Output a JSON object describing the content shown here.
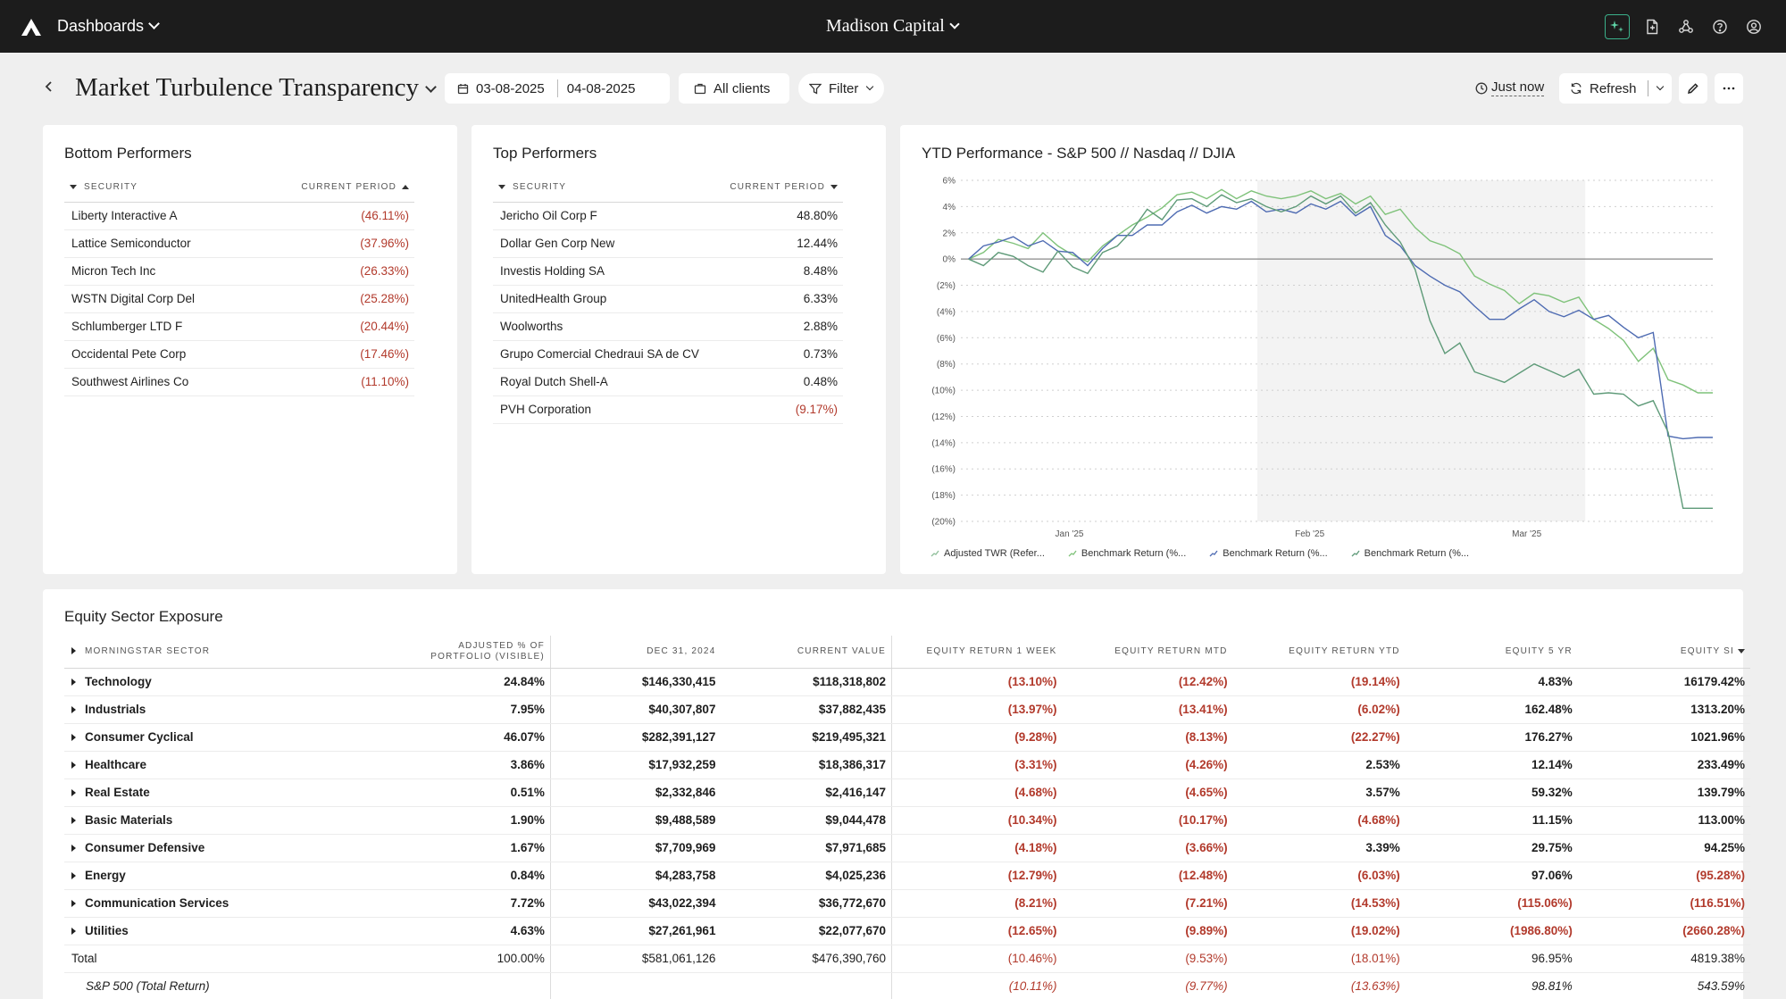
{
  "topbar": {
    "nav_label": "Dashboards",
    "org_name": "Madison Capital",
    "icons": [
      "logo-icon",
      "sparkle-icon",
      "document-icon",
      "network-icon",
      "help-icon",
      "user-icon"
    ]
  },
  "header": {
    "title": "Market Turbulence Transparency",
    "date_start": "03-08-2025",
    "date_end": "04-08-2025",
    "clients_label": "All clients",
    "filter_label": "Filter",
    "updated_label": "Just now",
    "refresh_label": "Refresh"
  },
  "bottom_performers": {
    "title": "Bottom Performers",
    "col_security": "Security",
    "col_period": "Current Period",
    "rows": [
      {
        "name": "Liberty Interactive A",
        "value": "(46.11%)"
      },
      {
        "name": "Lattice Semiconductor",
        "value": "(37.96%)"
      },
      {
        "name": "Micron Tech Inc",
        "value": "(26.33%)"
      },
      {
        "name": "WSTN Digital Corp Del",
        "value": "(25.28%)"
      },
      {
        "name": "Schlumberger LTD F",
        "value": "(20.44%)"
      },
      {
        "name": "Occidental Pete Corp",
        "value": "(17.46%)"
      },
      {
        "name": "Southwest Airlines Co",
        "value": "(11.10%)"
      }
    ]
  },
  "top_performers": {
    "title": "Top Performers",
    "col_security": "Security",
    "col_period": "Current Period",
    "rows": [
      {
        "name": "Jericho Oil Corp F",
        "value": "48.80%"
      },
      {
        "name": "Dollar Gen Corp New",
        "value": "12.44%"
      },
      {
        "name": "Investis Holding SA",
        "value": "8.48%"
      },
      {
        "name": "UnitedHealth Group",
        "value": "6.33%"
      },
      {
        "name": "Woolworths",
        "value": "2.88%"
      },
      {
        "name": "Grupo Comercial Chedraui SA de CV",
        "value": "0.73%"
      },
      {
        "name": "Royal Dutch Shell-A",
        "value": "0.48%"
      },
      {
        "name": "PVH Corporation",
        "value": "(9.17%)"
      }
    ]
  },
  "chart_data": {
    "type": "line",
    "title": "YTD Performance - S&P 500 // Nasdaq // DJIA",
    "ylim": [
      -20,
      6
    ],
    "yticks": [
      "6%",
      "4%",
      "2%",
      "0%",
      "(2%)",
      "(4%)",
      "(6%)",
      "(8%)",
      "(10%)",
      "(12%)",
      "(14%)",
      "(16%)",
      "(18%)",
      "(20%)"
    ],
    "xticks": [
      "Jan '25",
      "Feb '25",
      "Mar '25"
    ],
    "x_range": [
      "2025-01-01",
      "2025-04-08"
    ],
    "x_tick_dates": [
      "2025-01-15",
      "2025-02-15",
      "2025-03-15"
    ],
    "grid": true,
    "legend_position": "bottom",
    "series": [
      {
        "name": "Adjusted TWR (Refer...",
        "color": "#8fbf9a",
        "values": []
      },
      {
        "name": "Benchmark Return (%...",
        "color": "#7fc27a",
        "values": [
          0,
          0.5,
          1.5,
          1.2,
          0.8,
          2.0,
          1.0,
          0.3,
          -0.2,
          1.0,
          1.8,
          2.6,
          3.2,
          3.9,
          4.9,
          5.1,
          4.6,
          5.3,
          4.6,
          5.2,
          4.8,
          4.6,
          4.8,
          5.2,
          4.6,
          5.0,
          4.2,
          4.8,
          3.4,
          3.8,
          2.4,
          1.4,
          1.0,
          0.4,
          -1.3,
          -1.9,
          -2.4,
          -3.4,
          -2.6,
          -2.8,
          -3.3,
          -2.9,
          -4.6,
          -5.3,
          -6.2,
          -7.8,
          -6.8,
          -9.2,
          -9.6,
          -10.2,
          -10.2
        ]
      },
      {
        "name": "Benchmark Return (%...",
        "color": "#4e6bb2",
        "values": [
          0,
          1.0,
          1.3,
          1.7,
          1.0,
          1.4,
          0.6,
          0.5,
          -0.5,
          0.8,
          1.8,
          1.8,
          2.6,
          2.6,
          3.6,
          4.1,
          3.5,
          4.0,
          3.8,
          4.4,
          3.6,
          3.8,
          3.5,
          4.2,
          3.8,
          4.4,
          3.3,
          4.0,
          1.8,
          1.0,
          -0.5,
          -1.3,
          -2.0,
          -2.5,
          -3.6,
          -4.6,
          -4.6,
          -3.8,
          -3.1,
          -4.0,
          -4.4,
          -3.9,
          -4.6,
          -4.3,
          -5.2,
          -6.0,
          -5.6,
          -13.5,
          -13.7,
          -13.6,
          -13.6
        ]
      },
      {
        "name": "Benchmark Return (%...",
        "color": "#5e9a78",
        "values": [
          0,
          -0.5,
          0.5,
          0.2,
          -0.5,
          -1.0,
          0.6,
          -0.6,
          -1.1,
          0.5,
          1.0,
          2.2,
          3.8,
          3.0,
          4.5,
          4.6,
          4.0,
          4.9,
          4.3,
          4.6,
          4.0,
          3.6,
          4.0,
          4.8,
          4.2,
          4.8,
          3.5,
          4.3,
          2.6,
          1.3,
          -0.8,
          -4.7,
          -7.2,
          -6.4,
          -8.6,
          -9.0,
          -9.4,
          -8.7,
          -8.0,
          -8.5,
          -9.0,
          -8.4,
          -10.3,
          -10.2,
          -10.3,
          -11.2,
          -10.8,
          -13.2,
          -19.0,
          -19.0,
          -19.0
        ]
      }
    ],
    "series_dates": [
      "2025-01-02",
      "2025-04-08"
    ]
  },
  "equity": {
    "title": "Equity Sector Exposure",
    "columns": [
      "Morningstar Sector",
      "Adjusted % of Portfolio (Visible)",
      "Dec 31, 2024",
      "Current Value",
      "Equity Return 1 Week",
      "Equity Return MTD",
      "Equity Return YTD",
      "Equity 5 YR",
      "Equity SI"
    ],
    "rows": [
      {
        "cells": [
          "Technology",
          "24.84%",
          "$146,330,415",
          "$118,318,802",
          "(13.10%)",
          "(12.42%)",
          "(19.14%)",
          "4.83%",
          "16179.42%"
        ]
      },
      {
        "cells": [
          "Industrials",
          "7.95%",
          "$40,307,807",
          "$37,882,435",
          "(13.97%)",
          "(13.41%)",
          "(6.02%)",
          "162.48%",
          "1313.20%"
        ]
      },
      {
        "cells": [
          "Consumer Cyclical",
          "46.07%",
          "$282,391,127",
          "$219,495,321",
          "(9.28%)",
          "(8.13%)",
          "(22.27%)",
          "176.27%",
          "1021.96%"
        ]
      },
      {
        "cells": [
          "Healthcare",
          "3.86%",
          "$17,932,259",
          "$18,386,317",
          "(3.31%)",
          "(4.26%)",
          "2.53%",
          "12.14%",
          "233.49%"
        ]
      },
      {
        "cells": [
          "Real Estate",
          "0.51%",
          "$2,332,846",
          "$2,416,147",
          "(4.68%)",
          "(4.65%)",
          "3.57%",
          "59.32%",
          "139.79%"
        ]
      },
      {
        "cells": [
          "Basic Materials",
          "1.90%",
          "$9,488,589",
          "$9,044,478",
          "(10.34%)",
          "(10.17%)",
          "(4.68%)",
          "11.15%",
          "113.00%"
        ]
      },
      {
        "cells": [
          "Consumer Defensive",
          "1.67%",
          "$7,709,969",
          "$7,971,685",
          "(4.18%)",
          "(3.66%)",
          "3.39%",
          "29.75%",
          "94.25%"
        ]
      },
      {
        "cells": [
          "Energy",
          "0.84%",
          "$4,283,758",
          "$4,025,236",
          "(12.79%)",
          "(12.48%)",
          "(6.03%)",
          "97.06%",
          "(95.28%)"
        ]
      },
      {
        "cells": [
          "Communication Services",
          "7.72%",
          "$43,022,394",
          "$36,772,670",
          "(8.21%)",
          "(7.21%)",
          "(14.53%)",
          "(115.06%)",
          "(116.51%)"
        ]
      },
      {
        "cells": [
          "Utilities",
          "4.63%",
          "$27,261,961",
          "$22,077,670",
          "(12.65%)",
          "(9.89%)",
          "(19.02%)",
          "(1986.80%)",
          "(2660.28%)"
        ]
      }
    ],
    "total": [
      "Total",
      "100.00%",
      "$581,061,126",
      "$476,390,760",
      "(10.46%)",
      "(9.53%)",
      "(18.01%)",
      "96.95%",
      "4819.38%"
    ],
    "benchmark": [
      "S&P 500 (Total Return)",
      "",
      "",
      "",
      "(10.11%)",
      "(9.77%)",
      "(13.63%)",
      "98.81%",
      "543.59%"
    ]
  }
}
